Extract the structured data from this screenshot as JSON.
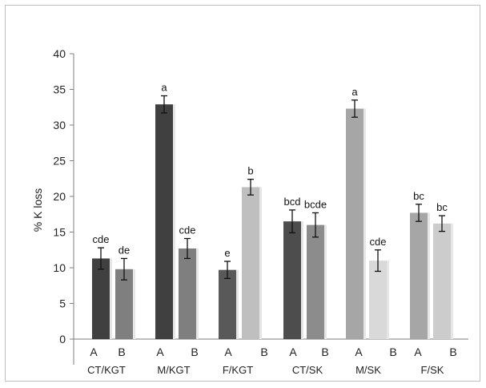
{
  "chart_data": {
    "type": "bar",
    "title": "",
    "xlabel": "",
    "ylabel": "% K loss",
    "ylim": [
      0,
      40
    ],
    "yticks": [
      0,
      5,
      10,
      15,
      20,
      25,
      30,
      35,
      40
    ],
    "grid": false,
    "groups": [
      {
        "label": "CT/KGT",
        "bars": [
          {
            "sub": "A",
            "value": 11.3,
            "err": 1.5,
            "sig": "cde",
            "color": "#404040"
          },
          {
            "sub": "B",
            "value": 9.8,
            "err": 1.5,
            "sig": "de",
            "color": "#7f7f7f"
          }
        ]
      },
      {
        "label": "M/KGT",
        "bars": [
          {
            "sub": "A",
            "value": 32.9,
            "err": 1.2,
            "sig": "a",
            "color": "#404040"
          },
          {
            "sub": "B",
            "value": 12.7,
            "err": 1.4,
            "sig": "cde",
            "color": "#7f7f7f"
          }
        ]
      },
      {
        "label": "F/KGT",
        "bars": [
          {
            "sub": "A",
            "value": 9.7,
            "err": 1.2,
            "sig": "e",
            "color": "#595959"
          },
          {
            "sub": "B",
            "value": 21.3,
            "err": 1.1,
            "sig": "b",
            "color": "#bfbfbf"
          }
        ]
      },
      {
        "label": "CT/SK",
        "bars": [
          {
            "sub": "A",
            "value": 16.5,
            "err": 1.6,
            "sig": "bcd",
            "color": "#4d4d4d"
          },
          {
            "sub": "B",
            "value": 16.0,
            "err": 1.7,
            "sig": "bcde",
            "color": "#8c8c8c"
          }
        ]
      },
      {
        "label": "M/SK",
        "bars": [
          {
            "sub": "A",
            "value": 32.3,
            "err": 1.2,
            "sig": "a",
            "color": "#a6a6a6"
          },
          {
            "sub": "B",
            "value": 11.0,
            "err": 1.5,
            "sig": "cde",
            "color": "#d9d9d9"
          }
        ]
      },
      {
        "label": "F/SK",
        "bars": [
          {
            "sub": "A",
            "value": 17.7,
            "err": 1.2,
            "sig": "bc",
            "color": "#a6a6a6"
          },
          {
            "sub": "B",
            "value": 16.2,
            "err": 1.1,
            "sig": "bc",
            "color": "#cccccc"
          }
        ]
      }
    ]
  }
}
